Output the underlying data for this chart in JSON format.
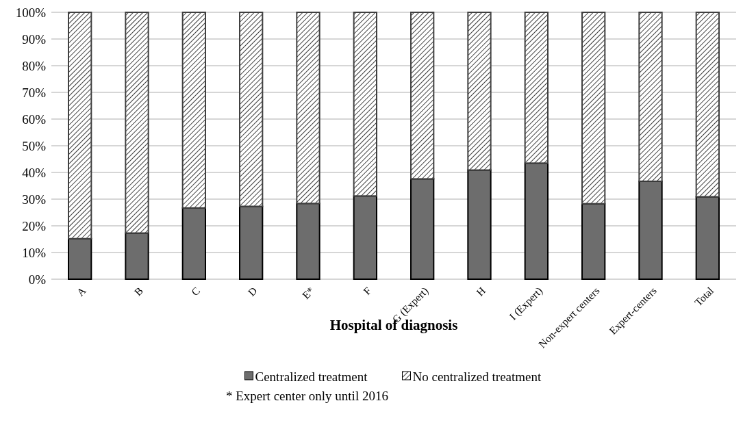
{
  "chart_data": {
    "type": "bar",
    "stacked": true,
    "xlabel": "Hospital of diagnosis",
    "categories": [
      "A",
      "B",
      "C",
      "D",
      "E*",
      "F",
      "G (Expert)",
      "H",
      "I (Expert)",
      "Non-expert centers",
      "Expert-centers",
      "Total"
    ],
    "series": [
      {
        "name": "Centralized treatment",
        "color": "#6d6d6d",
        "values": [
          15.2,
          17.3,
          26.7,
          27.3,
          28.4,
          31.2,
          37.6,
          40.9,
          43.5,
          28.3,
          36.7,
          30.9
        ]
      },
      {
        "name": "No centralized treatment",
        "color": "#404040",
        "values": [
          84.8,
          82.7,
          73.3,
          72.7,
          71.6,
          68.8,
          62.4,
          59.1,
          56.5,
          71.7,
          63.3,
          69.1
        ]
      }
    ],
    "ylim": [
      0,
      100
    ],
    "yticks": [
      {
        "value": 0,
        "label": "0%"
      },
      {
        "value": 10,
        "label": "10%"
      },
      {
        "value": 20,
        "label": "20%"
      },
      {
        "value": 30,
        "label": "30%"
      },
      {
        "value": 40,
        "label": "40%"
      },
      {
        "value": 50,
        "label": "50%"
      },
      {
        "value": 60,
        "label": "60%"
      },
      {
        "value": 70,
        "label": "70%"
      },
      {
        "value": 80,
        "label": "80%"
      },
      {
        "value": 90,
        "label": "90%"
      },
      {
        "value": 100,
        "label": "100%"
      }
    ],
    "grid": "y",
    "legend": "bottom",
    "annotations": [
      "* Expert center only until 2016"
    ]
  }
}
